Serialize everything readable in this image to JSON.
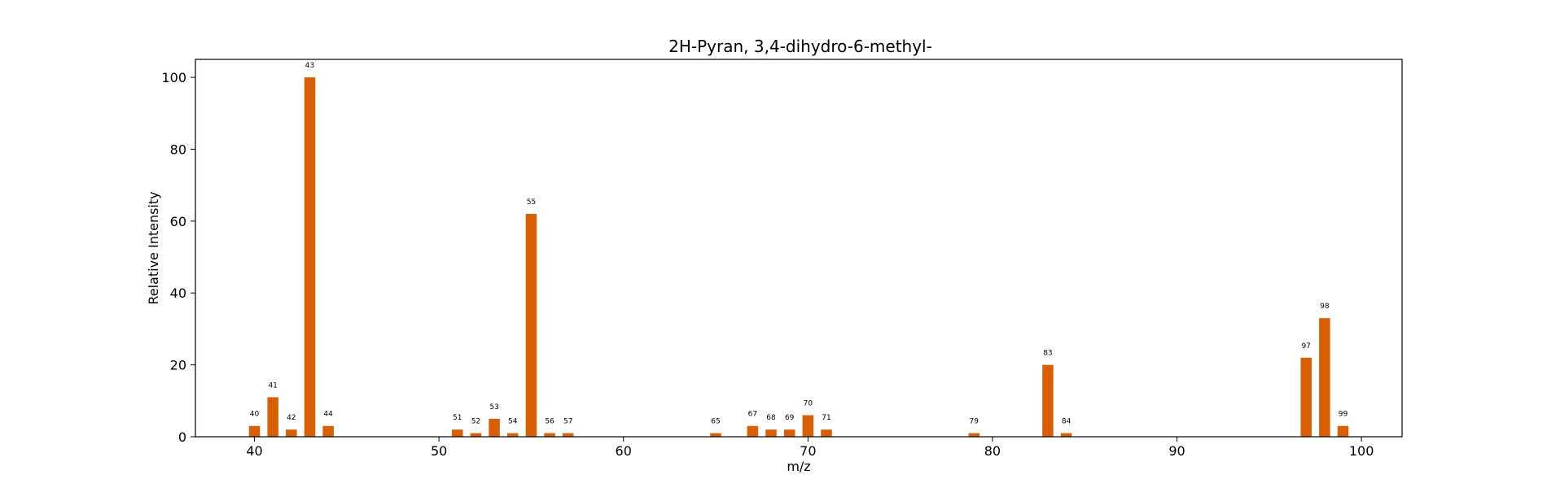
{
  "chart_data": {
    "type": "bar",
    "title": "2H-Pyran, 3,4-dihydro-6-methyl-",
    "xlabel": "m/z",
    "ylabel": "Relative Intensity",
    "xlim": [
      36.8,
      102.2
    ],
    "ylim": [
      0,
      105
    ],
    "xticks": [
      40,
      50,
      60,
      70,
      80,
      90,
      100
    ],
    "yticks": [
      0,
      20,
      40,
      60,
      80,
      100
    ],
    "grid": false,
    "bar_color": "#d95f02",
    "points": [
      {
        "x": 40,
        "y": 3,
        "label": "40"
      },
      {
        "x": 41,
        "y": 11,
        "label": "41"
      },
      {
        "x": 42,
        "y": 2,
        "label": "42"
      },
      {
        "x": 43,
        "y": 100,
        "label": "43"
      },
      {
        "x": 44,
        "y": 3,
        "label": "44"
      },
      {
        "x": 51,
        "y": 2,
        "label": "51"
      },
      {
        "x": 52,
        "y": 1,
        "label": "52"
      },
      {
        "x": 53,
        "y": 5,
        "label": "53"
      },
      {
        "x": 54,
        "y": 1,
        "label": "54"
      },
      {
        "x": 55,
        "y": 62,
        "label": "55"
      },
      {
        "x": 56,
        "y": 1,
        "label": "56"
      },
      {
        "x": 57,
        "y": 1,
        "label": "57"
      },
      {
        "x": 65,
        "y": 1,
        "label": "65"
      },
      {
        "x": 67,
        "y": 3,
        "label": "67"
      },
      {
        "x": 68,
        "y": 2,
        "label": "68"
      },
      {
        "x": 69,
        "y": 2,
        "label": "69"
      },
      {
        "x": 70,
        "y": 6,
        "label": "70"
      },
      {
        "x": 71,
        "y": 2,
        "label": "71"
      },
      {
        "x": 79,
        "y": 1,
        "label": "79"
      },
      {
        "x": 83,
        "y": 20,
        "label": "83"
      },
      {
        "x": 84,
        "y": 1,
        "label": "84"
      },
      {
        "x": 97,
        "y": 22,
        "label": "97"
      },
      {
        "x": 98,
        "y": 33,
        "label": "98"
      },
      {
        "x": 99,
        "y": 3,
        "label": "99"
      }
    ]
  }
}
